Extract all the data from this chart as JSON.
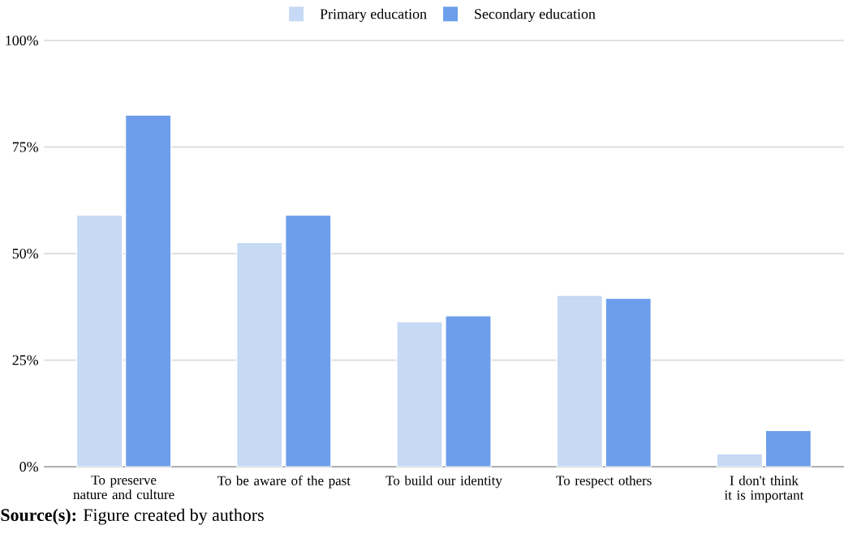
{
  "chart_data": {
    "type": "bar",
    "categories": [
      "To preserve nature and culture",
      "To be aware of the past",
      "To build our identity",
      "To respect others",
      "I don't think it is important"
    ],
    "series": [
      {
        "name": "Primary education",
        "color": "#c6d9f5",
        "values": [
          59,
          52.6,
          34,
          40.2,
          3
        ]
      },
      {
        "name": "Secondary education",
        "color": "#6d9eeb",
        "values": [
          82.5,
          59,
          35.4,
          39.5,
          8.5
        ]
      }
    ],
    "ylim": [
      0,
      100
    ],
    "yticks": [
      {
        "value": 0,
        "label": "0%"
      },
      {
        "value": 25,
        "label": "25%"
      },
      {
        "value": 50,
        "label": "50%"
      },
      {
        "value": 75,
        "label": "75%"
      },
      {
        "value": 100,
        "label": "100%"
      }
    ],
    "grid": "y",
    "legend": "top",
    "annotations": [
      "**Source(s):** Figure created by authors"
    ]
  }
}
